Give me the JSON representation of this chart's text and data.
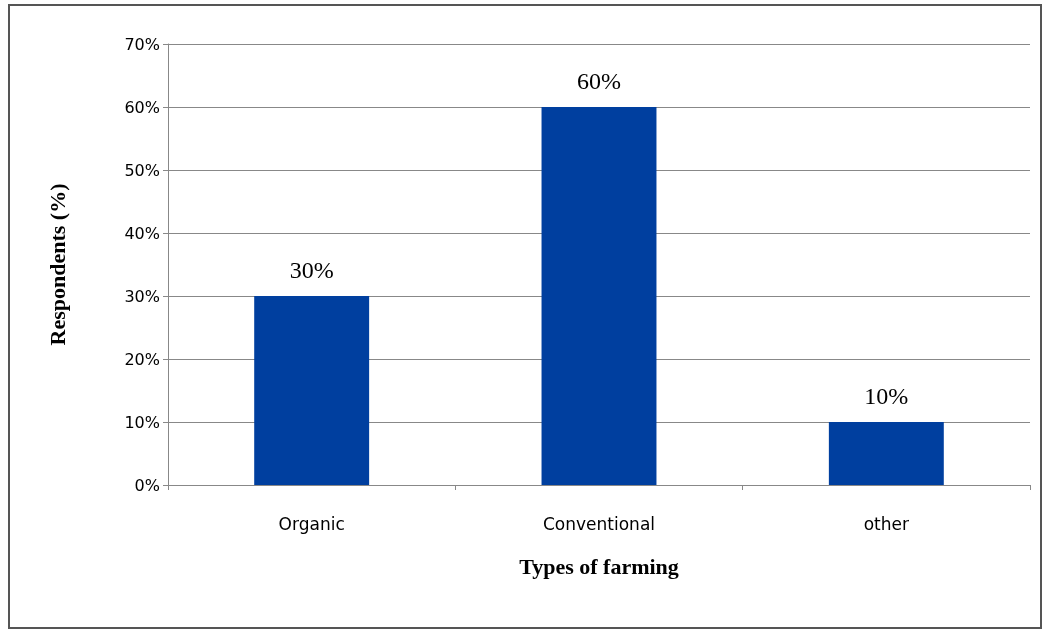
{
  "chart_data": {
    "type": "bar",
    "xlabel": "Types of farming",
    "ylabel": "Respondents (%)",
    "categories": [
      "Organic",
      "Conventional",
      "other"
    ],
    "values": [
      30,
      60,
      10
    ],
    "color": "#003f9f",
    "value_labels": [
      "30%",
      "60%",
      "10%"
    ],
    "ylim": [
      0,
      70
    ],
    "yticks": [
      {
        "value": 0,
        "label": "0%"
      },
      {
        "value": 10,
        "label": "10%"
      },
      {
        "value": 20,
        "label": "20%"
      },
      {
        "value": 30,
        "label": "30%"
      },
      {
        "value": 40,
        "label": "40%"
      },
      {
        "value": 50,
        "label": "50%"
      },
      {
        "value": 60,
        "label": "60%"
      },
      {
        "value": 70,
        "label": "70%"
      }
    ],
    "grid": "y"
  }
}
